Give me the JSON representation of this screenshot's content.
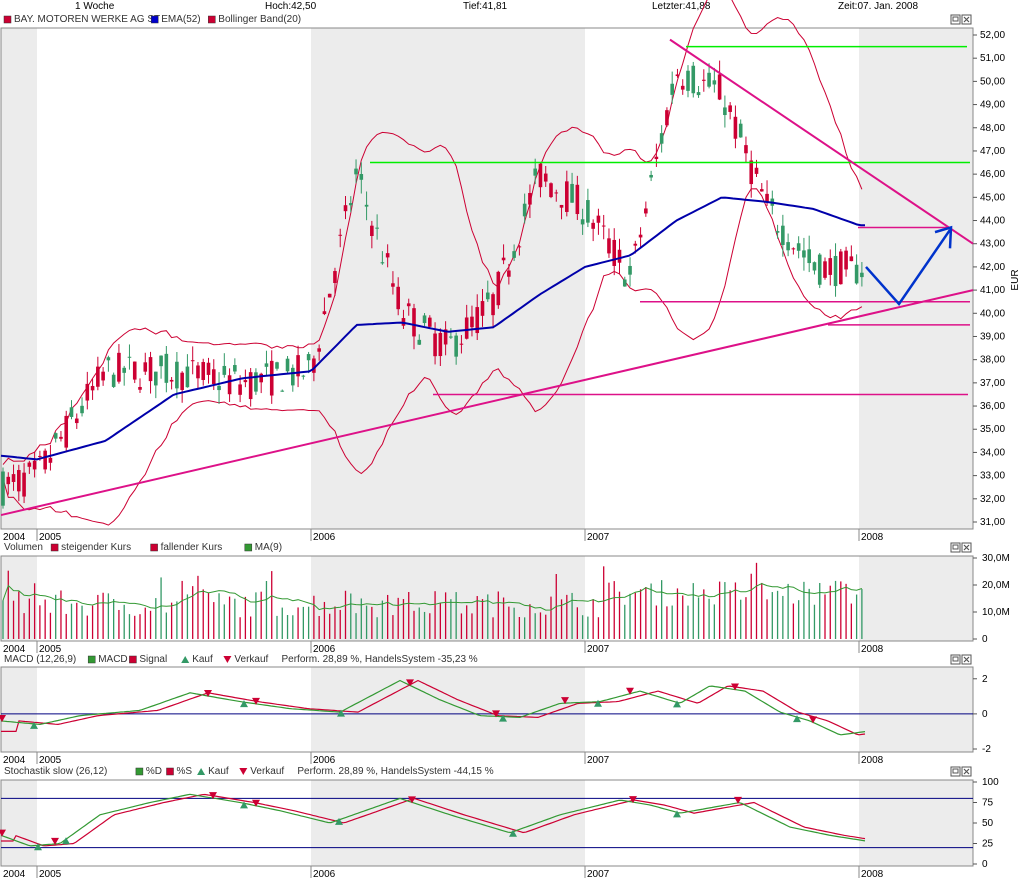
{
  "header": {
    "period": "1 Woche",
    "high": "Hoch:42,50",
    "low": "Tief:41,81",
    "last": "Letzter:41,88",
    "time": "Zeit:07. Jan. 2008"
  },
  "price_panel": {
    "legend": [
      {
        "label": "BAY. MOTOREN WERKE AG ST",
        "color": "#cc0033"
      },
      {
        "label": "EMA(52)",
        "color": "#0000cc"
      },
      {
        "label": "Bollinger Band(20)",
        "color": "#cc0033"
      }
    ],
    "axis_unit": "EUR",
    "y_ticks": [
      "31,00",
      "32,00",
      "33,00",
      "34,00",
      "35,00",
      "36,00",
      "37,00",
      "38,00",
      "39,00",
      "40,00",
      "41,00",
      "42,00",
      "43,00",
      "44,00",
      "45,00",
      "46,00",
      "47,00",
      "48,00",
      "49,00",
      "50,00",
      "51,00",
      "52,00"
    ]
  },
  "volume_panel": {
    "legend": [
      {
        "label": "Volumen",
        "color": ""
      },
      {
        "label": "steigender Kurs",
        "color": "#cc0033"
      },
      {
        "label": "fallender Kurs",
        "color": "#cc0033"
      },
      {
        "label": "MA(9)",
        "color": "#339933"
      }
    ],
    "y_ticks": [
      "0",
      "10,0M",
      "20,0M",
      "30,0M"
    ]
  },
  "macd_panel": {
    "legend": [
      {
        "label": "MACD (12,26,9)",
        "color": ""
      },
      {
        "label": "MACD",
        "color": "#339933"
      },
      {
        "label": "Signal",
        "color": "#cc0033"
      },
      {
        "label": "Kauf",
        "color": "#339966",
        "marker": "up"
      },
      {
        "label": "Verkauf",
        "color": "#cc0033",
        "marker": "down"
      },
      {
        "label": "Perform. 28,89 %, HandelsSystem -35,23 %",
        "color": ""
      }
    ],
    "y_ticks": [
      "-2",
      "0",
      "2"
    ]
  },
  "stoch_panel": {
    "legend": [
      {
        "label": "Stochastik slow (26,12)",
        "color": ""
      },
      {
        "label": "%D",
        "color": "#339933"
      },
      {
        "label": "%S",
        "color": "#cc0033"
      },
      {
        "label": "Kauf",
        "color": "#339966",
        "marker": "up"
      },
      {
        "label": "Verkauf",
        "color": "#cc0033",
        "marker": "down"
      },
      {
        "label": "Perform. 28,89 %, HandelsSystem -44,15 %",
        "color": ""
      }
    ],
    "y_ticks": [
      "0",
      "25",
      "50",
      "75",
      "100"
    ]
  },
  "x_axis_labels": [
    "2004",
    "2005",
    "2006",
    "2007",
    "2008"
  ],
  "colors": {
    "up_candle": "#339966",
    "down_candle": "#cc0033",
    "ema": "#0000aa",
    "bollinger": "#cc0033",
    "trendline": "#dd1188",
    "support": "#00ee00",
    "forecast": "#0033cc",
    "shade": "#ececec"
  },
  "chart_data": {
    "type": "line",
    "title": "BAY. MOTOREN WERKE AG ST",
    "ylabel": "EUR",
    "ylim": [
      31,
      52
    ],
    "x": [
      "2004-10",
      "2005-01",
      "2005-04",
      "2005-07",
      "2005-10",
      "2006-01",
      "2006-03",
      "2006-05",
      "2006-07",
      "2006-09",
      "2006-11",
      "2007-01",
      "2007-03",
      "2007-05",
      "2007-07",
      "2007-09",
      "2007-11",
      "2008-01"
    ],
    "series": [
      {
        "name": "BAY. MOTOREN WERKE AG ST",
        "values": [
          32.0,
          33.0,
          37.5,
          37.5,
          37.0,
          37.5,
          46.0,
          40.0,
          38.5,
          40.5,
          46.0,
          44.5,
          41.5,
          50.5,
          49.5,
          44.5,
          42.0,
          41.9
        ]
      },
      {
        "name": "EMA(52)",
        "values": [
          34.0,
          33.7,
          34.5,
          36.5,
          37.2,
          37.5,
          39.5,
          39.6,
          39.2,
          39.4,
          40.8,
          42.0,
          42.5,
          44.0,
          45.0,
          44.8,
          44.5,
          43.8
        ]
      }
    ],
    "horizontal_levels": [
      51.5,
      46.5,
      43.7,
      40.5,
      39.5,
      36.5
    ],
    "volume_ylim": [
      0,
      30
    ],
    "macd_ylim": [
      -2,
      2.5
    ],
    "stoch_ylim": [
      0,
      100
    ]
  }
}
